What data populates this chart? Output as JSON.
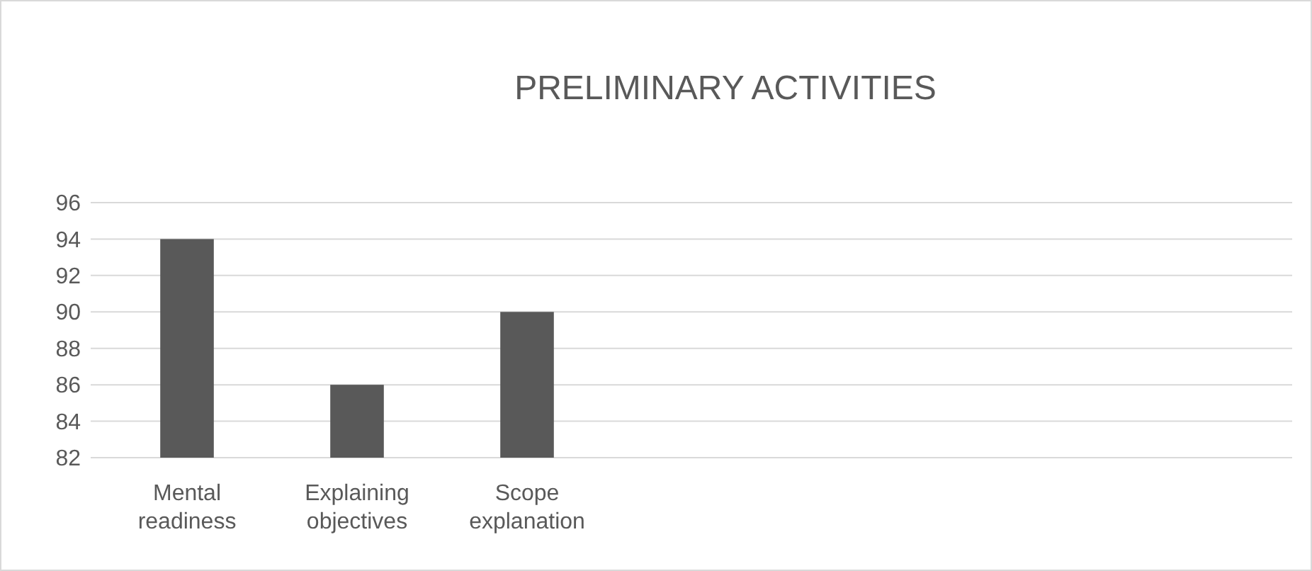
{
  "chart_data": {
    "type": "bar",
    "title": "PRELIMINARY ACTIVITIES",
    "categories": [
      "Mental readiness",
      "Explaining objectives",
      "Scope explanation",
      null,
      null,
      null,
      null
    ],
    "values": [
      94,
      86,
      90,
      null,
      null,
      null,
      null
    ],
    "color": "#595959",
    "ylim": [
      82,
      96
    ],
    "yticks": [
      82,
      84,
      86,
      88,
      90,
      92,
      94,
      96
    ],
    "grid": "y"
  }
}
